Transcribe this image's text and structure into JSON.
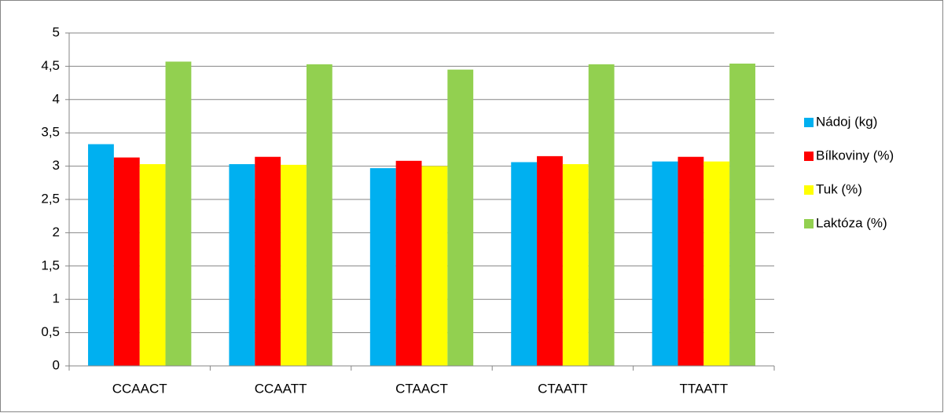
{
  "chart_data": {
    "type": "bar",
    "categories": [
      "CCAACT",
      "CCAATT",
      "CTAACT",
      "CTAATT",
      "TTAATT"
    ],
    "series": [
      {
        "name": "Nádoj (kg)",
        "color": "#00b0f0",
        "values": [
          3.33,
          3.03,
          2.97,
          3.06,
          3.07
        ]
      },
      {
        "name": "Bílkoviny (%)",
        "color": "#ff0000",
        "values": [
          3.13,
          3.14,
          3.08,
          3.15,
          3.14
        ]
      },
      {
        "name": "Tuk (%)",
        "color": "#ffff00",
        "values": [
          3.03,
          3.02,
          3.0,
          3.03,
          3.07
        ]
      },
      {
        "name": "Laktóza (%)",
        "color": "#92d050",
        "values": [
          4.57,
          4.53,
          4.45,
          4.53,
          4.54
        ]
      }
    ],
    "ylim": [
      0,
      5
    ],
    "yticks": [
      0,
      {
        "value": 0.5,
        "label": "0,5"
      },
      1,
      {
        "value": 1.5,
        "label": "1,5"
      },
      2,
      {
        "value": 2.5,
        "label": "2,5"
      },
      3,
      {
        "value": 3.5,
        "label": "3,5"
      },
      4,
      {
        "value": 4.5,
        "label": "4,5"
      },
      5
    ],
    "grid": true,
    "legend": "right"
  }
}
